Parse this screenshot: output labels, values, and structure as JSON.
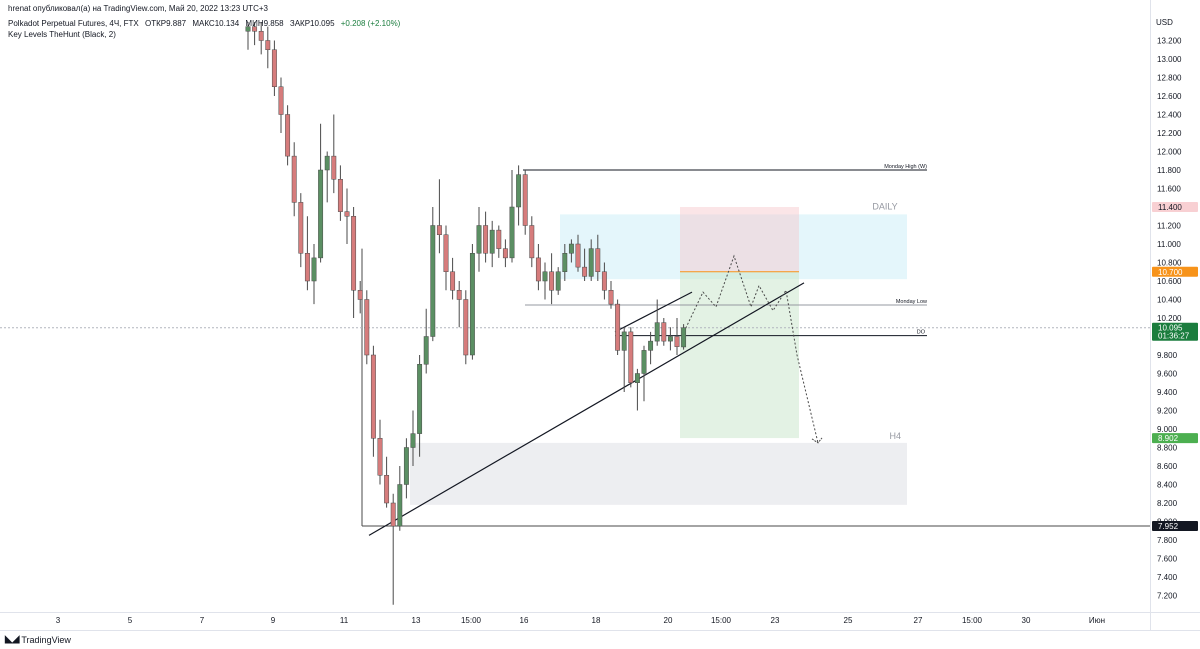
{
  "header": {
    "publisher": "hrenat опубликовал(а) на TradingView.com, Май 20, 2022 13:23 UTC+3",
    "symbol_line": "Polkadot Perpetual Futures, 4Ч, FTX",
    "open_label": "ОТКР",
    "open_value": "9.887",
    "high_label": "МАКС",
    "high_value": "10.134",
    "low_label": "МИН",
    "low_value": "9.858",
    "close_label": "ЗАКР",
    "close_value": "10.095",
    "change": "+0.208 (+2.10%)",
    "indicator": "Key Levels TheHunt (Black, 2)"
  },
  "footer": {
    "brand": "TradingView"
  },
  "chart_data": {
    "type": "candlestick",
    "currency": "USD",
    "ylim": [
      7.0,
      13.4
    ],
    "y_ticks": [
      "13.200",
      "13.000",
      "12.800",
      "12.600",
      "12.400",
      "12.200",
      "12.000",
      "11.800",
      "11.600",
      "11.400",
      "11.200",
      "11.000",
      "10.800",
      "10.600",
      "10.400",
      "10.200",
      "10.000",
      "9.800",
      "9.600",
      "9.400",
      "9.200",
      "9.000",
      "8.800",
      "8.600",
      "8.400",
      "8.200",
      "8.000",
      "7.800",
      "7.600",
      "7.400",
      "7.200"
    ],
    "x_ticks": [
      "3",
      "5",
      "7",
      "9",
      "11",
      "13",
      "15:00",
      "16",
      "18",
      "20",
      "15:00",
      "23",
      "25",
      "27",
      "15:00",
      "30",
      "Июн"
    ],
    "candles": [
      {
        "o": 13.3,
        "h": 13.4,
        "l": 13.1,
        "c": 13.35
      },
      {
        "o": 13.35,
        "h": 13.4,
        "l": 13.15,
        "c": 13.3
      },
      {
        "o": 13.3,
        "h": 13.4,
        "l": 13.05,
        "c": 13.2
      },
      {
        "o": 13.2,
        "h": 13.35,
        "l": 12.9,
        "c": 13.1
      },
      {
        "o": 13.1,
        "h": 13.2,
        "l": 12.6,
        "c": 12.7
      },
      {
        "o": 12.7,
        "h": 12.8,
        "l": 12.2,
        "c": 12.4
      },
      {
        "o": 12.4,
        "h": 12.5,
        "l": 11.85,
        "c": 11.95
      },
      {
        "o": 11.95,
        "h": 12.1,
        "l": 11.3,
        "c": 11.45
      },
      {
        "o": 11.45,
        "h": 11.55,
        "l": 10.75,
        "c": 10.9
      },
      {
        "o": 10.9,
        "h": 11.3,
        "l": 10.5,
        "c": 10.6
      },
      {
        "o": 10.6,
        "h": 11.0,
        "l": 10.35,
        "c": 10.85
      },
      {
        "o": 10.85,
        "h": 12.3,
        "l": 10.8,
        "c": 11.8
      },
      {
        "o": 11.8,
        "h": 12.0,
        "l": 11.45,
        "c": 11.95
      },
      {
        "o": 11.95,
        "h": 12.4,
        "l": 11.55,
        "c": 11.7
      },
      {
        "o": 11.7,
        "h": 11.85,
        "l": 11.25,
        "c": 11.35
      },
      {
        "o": 11.35,
        "h": 11.6,
        "l": 11.0,
        "c": 11.3
      },
      {
        "o": 11.3,
        "h": 11.4,
        "l": 10.2,
        "c": 10.5
      },
      {
        "o": 10.5,
        "h": 10.6,
        "l": 10.25,
        "c": 10.4
      },
      {
        "o": 10.4,
        "h": 10.5,
        "l": 9.7,
        "c": 9.8
      },
      {
        "o": 9.8,
        "h": 9.9,
        "l": 8.7,
        "c": 8.9
      },
      {
        "o": 8.9,
        "h": 9.1,
        "l": 8.4,
        "c": 8.5
      },
      {
        "o": 8.5,
        "h": 8.7,
        "l": 8.15,
        "c": 8.2
      },
      {
        "o": 8.2,
        "h": 8.3,
        "l": 7.1,
        "c": 7.95
      },
      {
        "o": 7.95,
        "h": 8.6,
        "l": 7.9,
        "c": 8.4
      },
      {
        "o": 8.4,
        "h": 8.9,
        "l": 8.25,
        "c": 8.8
      },
      {
        "o": 8.8,
        "h": 9.2,
        "l": 8.6,
        "c": 8.95
      },
      {
        "o": 8.95,
        "h": 9.8,
        "l": 8.7,
        "c": 9.7
      },
      {
        "o": 9.7,
        "h": 10.3,
        "l": 9.6,
        "c": 10.0
      },
      {
        "o": 10.0,
        "h": 11.4,
        "l": 9.95,
        "c": 11.2
      },
      {
        "o": 11.2,
        "h": 11.7,
        "l": 10.9,
        "c": 11.1
      },
      {
        "o": 11.1,
        "h": 11.2,
        "l": 10.5,
        "c": 10.7
      },
      {
        "o": 10.7,
        "h": 10.85,
        "l": 10.4,
        "c": 10.5
      },
      {
        "o": 10.5,
        "h": 10.6,
        "l": 10.1,
        "c": 10.4
      },
      {
        "o": 10.4,
        "h": 10.5,
        "l": 9.7,
        "c": 9.8
      },
      {
        "o": 9.8,
        "h": 11.0,
        "l": 9.75,
        "c": 10.9
      },
      {
        "o": 10.9,
        "h": 11.4,
        "l": 10.7,
        "c": 11.2
      },
      {
        "o": 11.2,
        "h": 11.35,
        "l": 10.8,
        "c": 10.9
      },
      {
        "o": 10.9,
        "h": 11.25,
        "l": 10.75,
        "c": 11.15
      },
      {
        "o": 11.15,
        "h": 11.2,
        "l": 10.85,
        "c": 10.95
      },
      {
        "o": 10.95,
        "h": 11.05,
        "l": 10.75,
        "c": 10.85
      },
      {
        "o": 10.85,
        "h": 11.8,
        "l": 10.8,
        "c": 11.4
      },
      {
        "o": 11.4,
        "h": 11.85,
        "l": 11.2,
        "c": 11.75
      },
      {
        "o": 11.75,
        "h": 11.8,
        "l": 11.1,
        "c": 11.2
      },
      {
        "o": 11.2,
        "h": 11.3,
        "l": 10.75,
        "c": 10.85
      },
      {
        "o": 10.85,
        "h": 11.0,
        "l": 10.5,
        "c": 10.6
      },
      {
        "o": 10.6,
        "h": 10.8,
        "l": 10.4,
        "c": 10.7
      },
      {
        "o": 10.7,
        "h": 10.9,
        "l": 10.35,
        "c": 10.5
      },
      {
        "o": 10.5,
        "h": 10.75,
        "l": 10.45,
        "c": 10.7
      },
      {
        "o": 10.7,
        "h": 11.0,
        "l": 10.6,
        "c": 10.9
      },
      {
        "o": 10.9,
        "h": 11.05,
        "l": 10.8,
        "c": 11.0
      },
      {
        "o": 11.0,
        "h": 11.1,
        "l": 10.7,
        "c": 10.75
      },
      {
        "o": 10.75,
        "h": 10.95,
        "l": 10.6,
        "c": 10.65
      },
      {
        "o": 10.65,
        "h": 11.05,
        "l": 10.6,
        "c": 10.95
      },
      {
        "o": 10.95,
        "h": 11.1,
        "l": 10.6,
        "c": 10.7
      },
      {
        "o": 10.7,
        "h": 10.8,
        "l": 10.4,
        "c": 10.5
      },
      {
        "o": 10.5,
        "h": 10.6,
        "l": 10.3,
        "c": 10.35
      },
      {
        "o": 10.35,
        "h": 10.4,
        "l": 9.8,
        "c": 9.85
      },
      {
        "o": 9.85,
        "h": 10.1,
        "l": 9.4,
        "c": 10.05
      },
      {
        "o": 10.05,
        "h": 10.1,
        "l": 9.45,
        "c": 9.5
      },
      {
        "o": 9.5,
        "h": 9.65,
        "l": 9.2,
        "c": 9.6
      },
      {
        "o": 9.6,
        "h": 9.9,
        "l": 9.3,
        "c": 9.85
      },
      {
        "o": 9.85,
        "h": 10.05,
        "l": 9.7,
        "c": 9.95
      },
      {
        "o": 9.95,
        "h": 10.4,
        "l": 9.9,
        "c": 10.15
      },
      {
        "o": 10.15,
        "h": 10.2,
        "l": 9.9,
        "c": 9.95
      },
      {
        "o": 9.95,
        "h": 10.1,
        "l": 9.85,
        "c": 10.0
      },
      {
        "o": 10.0,
        "h": 10.2,
        "l": 9.8,
        "c": 9.89
      },
      {
        "o": 9.887,
        "h": 10.134,
        "l": 9.858,
        "c": 10.095
      }
    ],
    "annotations": {
      "monday_high": {
        "label": "Monday High (W)",
        "price": 11.8
      },
      "monday_low": {
        "label": "Monday Low",
        "price": 10.34
      },
      "do": {
        "label": "DO",
        "price": 10.01
      },
      "daily_zone": {
        "label": "DAILY",
        "top": 11.32,
        "bottom": 10.62
      },
      "h4_zone": {
        "label": "H4",
        "top": 8.85,
        "bottom": 8.18
      },
      "low_line": {
        "price": 7.952
      },
      "trendline_main": {
        "from_bar": 22,
        "from_price": 7.85,
        "to_bar": 76,
        "to_price": 10.58
      },
      "trendline_upper": {
        "from_bar": 58,
        "from_price": 10.05,
        "to_bar": 68,
        "to_price": 10.48
      },
      "short_position": {
        "start_bar": 68,
        "end_bar": 82,
        "entry": 10.7,
        "stop": 11.4,
        "target": 8.902
      },
      "projection": [
        [
          68,
          10.05
        ],
        [
          71,
          10.48
        ],
        [
          73,
          10.32
        ],
        [
          76,
          10.87
        ],
        [
          78,
          10.32
        ],
        [
          81,
          10.55
        ],
        [
          83,
          10.28
        ],
        [
          84,
          10.5
        ],
        [
          86,
          9.8
        ],
        [
          88,
          8.85
        ]
      ]
    },
    "price_labels": [
      {
        "value": "11.400",
        "bg": "#f8d0d3",
        "fg": "#131722",
        "price": 11.4
      },
      {
        "value": "10.700",
        "bg": "#f7931a",
        "fg": "#ffffff",
        "price": 10.7
      },
      {
        "value": "10.095",
        "sub": "01:36:27",
        "bg": "#1b7d3e",
        "fg": "#ffffff",
        "price": 10.095
      },
      {
        "value": "8.902",
        "bg": "#4caf50",
        "fg": "#ffffff",
        "price": 8.902
      },
      {
        "value": "7.952",
        "bg": "#131722",
        "fg": "#ffffff",
        "price": 7.952
      }
    ],
    "colors": {
      "up": "#5b8f63",
      "down": "#d67c7c",
      "wick": "#4a4a4a"
    }
  }
}
